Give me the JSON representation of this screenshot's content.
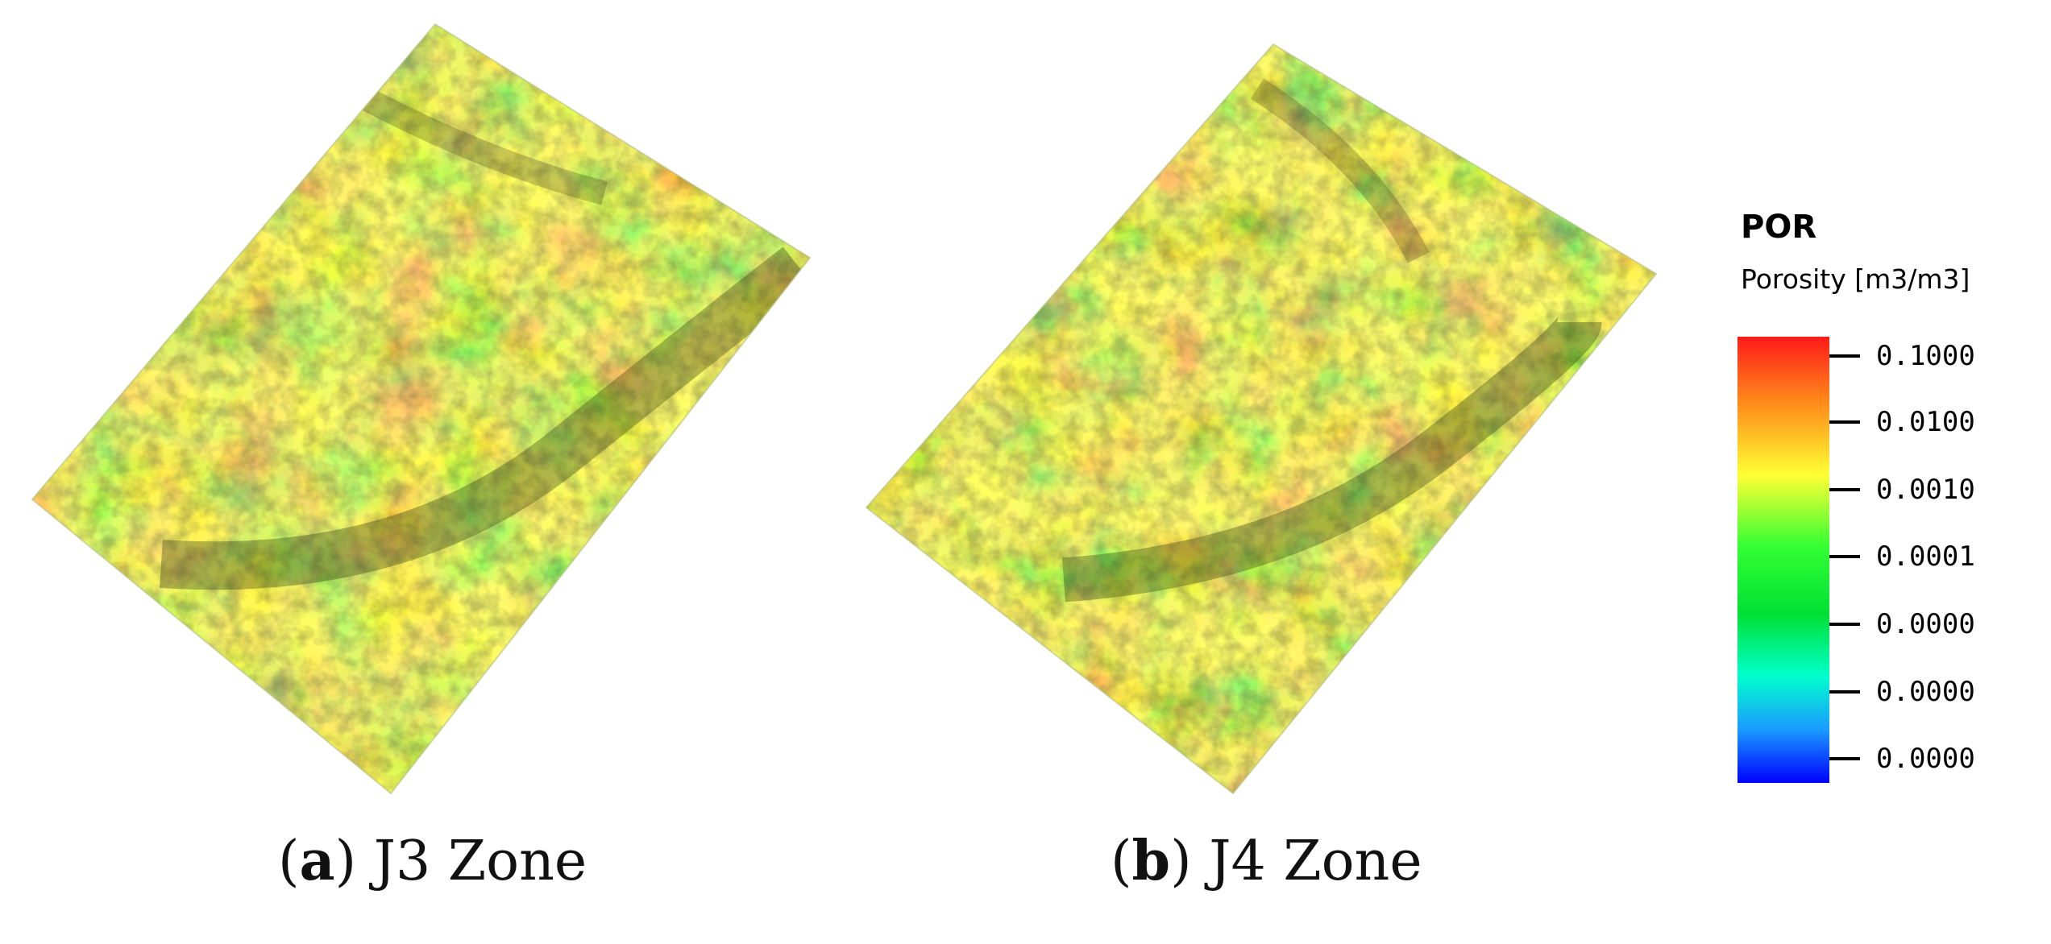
{
  "panels": [
    {
      "letter": "a",
      "label": "J3 Zone"
    },
    {
      "letter": "b",
      "label": "J4 Zone"
    }
  ],
  "legend": {
    "title": "POR",
    "subtitle": "Porosity [m3/m3]",
    "ticks": [
      "0.1000",
      "0.0100",
      "0.0010",
      "0.0001",
      "0.0000",
      "0.0000",
      "0.0000"
    ]
  },
  "colors": {
    "high": "#ff1a1a",
    "mid_high": "#ff8c1a",
    "mid": "#ffff33",
    "mid_low": "#33ff33",
    "low": "#0000ff"
  }
}
